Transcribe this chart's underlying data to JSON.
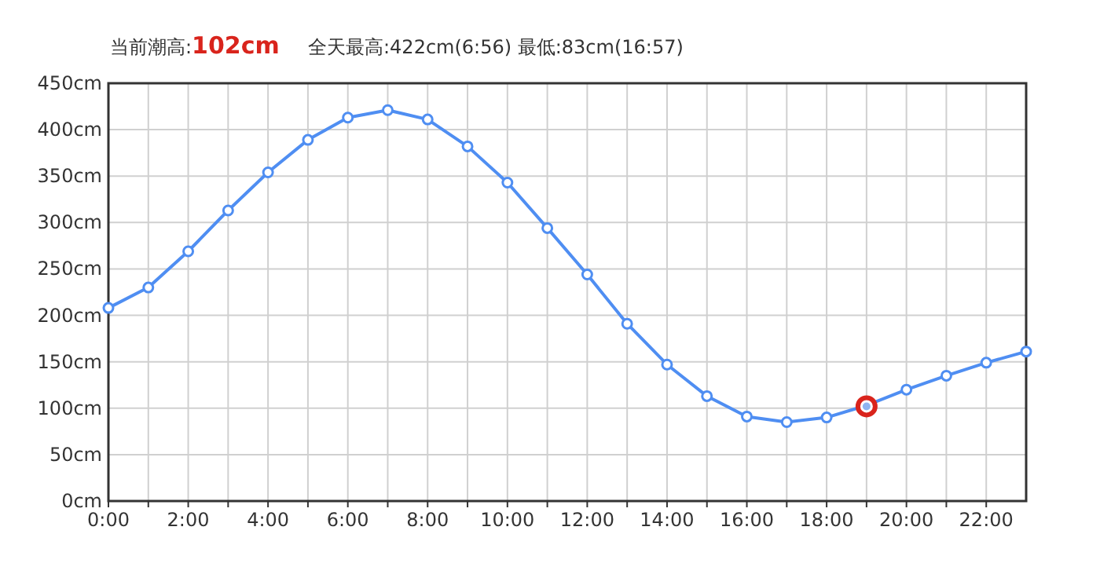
{
  "chart_data": {
    "type": "line",
    "title": "当前潮高:102cm",
    "subtitle": "全天最高:422cm(6:56) 最低:83cm(16:57)",
    "x": [
      0,
      1,
      2,
      3,
      4,
      5,
      6,
      7,
      8,
      9,
      10,
      11,
      12,
      13,
      14,
      15,
      16,
      17,
      18,
      19,
      20,
      21,
      22,
      23
    ],
    "series": [
      {
        "color": "#4f8ef2",
        "values": [
          208,
          230,
          269,
          313,
          354,
          389,
          413,
          421,
          411,
          382,
          343,
          294,
          244,
          191,
          147,
          113,
          91,
          85,
          90,
          103,
          120,
          135,
          149,
          161
        ]
      },
      {
        "type": "scatter",
        "color": "#d9241c",
        "x": [
          19
        ],
        "values": [
          102
        ]
      }
    ],
    "xlim": [
      0,
      23
    ],
    "xticks": [
      {
        "value": 0,
        "label": "0:00"
      },
      {
        "value": 1,
        "label": null
      },
      {
        "value": 2,
        "label": "2:00"
      },
      {
        "value": 3,
        "label": null
      },
      {
        "value": 4,
        "label": "4:00"
      },
      {
        "value": 5,
        "label": null
      },
      {
        "value": 6,
        "label": "6:00"
      },
      {
        "value": 7,
        "label": null
      },
      {
        "value": 8,
        "label": "8:00"
      },
      {
        "value": 9,
        "label": null
      },
      {
        "value": 10,
        "label": "10:00"
      },
      {
        "value": 11,
        "label": null
      },
      {
        "value": 12,
        "label": "12:00"
      },
      {
        "value": 13,
        "label": null
      },
      {
        "value": 14,
        "label": "14:00"
      },
      {
        "value": 15,
        "label": null
      },
      {
        "value": 16,
        "label": "16:00"
      },
      {
        "value": 17,
        "label": null
      },
      {
        "value": 18,
        "label": "18:00"
      },
      {
        "value": 19,
        "label": null
      },
      {
        "value": 20,
        "label": "20:00"
      },
      {
        "value": 21,
        "label": null
      },
      {
        "value": 22,
        "label": "22:00"
      }
    ],
    "ylim": [
      0,
      450
    ],
    "yticks": [
      {
        "value": 0,
        "label": "0cm"
      },
      {
        "value": 50,
        "label": "50cm"
      },
      {
        "value": 100,
        "label": "100cm"
      },
      {
        "value": 150,
        "label": "150cm"
      },
      {
        "value": 200,
        "label": "200cm"
      },
      {
        "value": 250,
        "label": "250cm"
      },
      {
        "value": 300,
        "label": "300cm"
      },
      {
        "value": 350,
        "label": "350cm"
      },
      {
        "value": 400,
        "label": "400cm"
      },
      {
        "value": 450,
        "label": "450cm"
      }
    ],
    "grid": true,
    "marker": "circle",
    "line_style": "solid"
  }
}
